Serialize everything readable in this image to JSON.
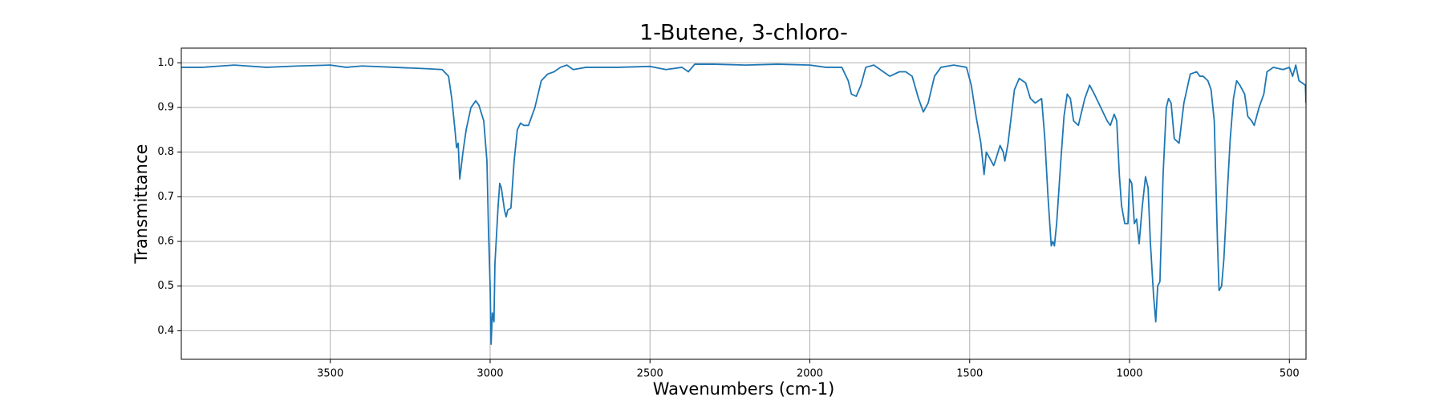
{
  "chart_data": {
    "type": "line",
    "title": "1-Butene, 3-chloro-",
    "xlabel": "Wavenumbers (cm-1)",
    "ylabel": "Transmittance",
    "color": "#1f77b4",
    "grid": true,
    "xlim": [
      3966,
      448
    ],
    "ylim": [
      0.336,
      1.033
    ],
    "xticks": [
      3500,
      3000,
      2500,
      2000,
      1500,
      1000,
      500
    ],
    "yticks": [
      0.4,
      0.5,
      0.6,
      0.7,
      0.8,
      0.9,
      {
        "value": 1,
        "label": "1.0"
      }
    ],
    "x": [
      3966,
      3900,
      3800,
      3700,
      3600,
      3500,
      3450,
      3400,
      3300,
      3200,
      3150,
      3130,
      3120,
      3110,
      3105,
      3100,
      3095,
      3085,
      3075,
      3060,
      3045,
      3035,
      3020,
      3010,
      3005,
      3000,
      2997,
      2993,
      2988,
      2985,
      2975,
      2970,
      2965,
      2955,
      2950,
      2945,
      2935,
      2925,
      2915,
      2905,
      2895,
      2880,
      2860,
      2840,
      2820,
      2800,
      2780,
      2760,
      2740,
      2700,
      2600,
      2500,
      2450,
      2400,
      2380,
      2360,
      2300,
      2200,
      2100,
      2000,
      1950,
      1900,
      1880,
      1870,
      1855,
      1840,
      1825,
      1800,
      1770,
      1750,
      1720,
      1700,
      1680,
      1660,
      1645,
      1630,
      1610,
      1590,
      1550,
      1510,
      1495,
      1480,
      1465,
      1455,
      1448,
      1440,
      1425,
      1420,
      1405,
      1395,
      1390,
      1380,
      1370,
      1360,
      1345,
      1325,
      1310,
      1295,
      1285,
      1275,
      1265,
      1255,
      1245,
      1240,
      1235,
      1228,
      1215,
      1205,
      1195,
      1185,
      1175,
      1160,
      1140,
      1125,
      1110,
      1090,
      1070,
      1060,
      1048,
      1040,
      1032,
      1025,
      1015,
      1005,
      1000,
      993,
      985,
      978,
      970,
      960,
      950,
      942,
      935,
      925,
      918,
      912,
      905,
      895,
      885,
      878,
      870,
      860,
      845,
      830,
      810,
      790,
      780,
      770,
      755,
      745,
      735,
      725,
      720,
      712,
      705,
      695,
      685,
      675,
      665,
      655,
      640,
      630,
      618,
      610,
      595,
      580,
      570,
      550,
      520,
      500,
      490,
      480,
      470,
      460,
      450,
      448
    ],
    "values": [
      0.99,
      0.99,
      0.995,
      0.99,
      0.993,
      0.995,
      0.99,
      0.993,
      0.99,
      0.987,
      0.985,
      0.97,
      0.92,
      0.85,
      0.81,
      0.82,
      0.74,
      0.8,
      0.85,
      0.9,
      0.915,
      0.905,
      0.87,
      0.78,
      0.62,
      0.5,
      0.37,
      0.44,
      0.42,
      0.55,
      0.68,
      0.73,
      0.72,
      0.67,
      0.655,
      0.67,
      0.675,
      0.78,
      0.85,
      0.865,
      0.86,
      0.86,
      0.9,
      0.96,
      0.975,
      0.98,
      0.99,
      0.995,
      0.985,
      0.99,
      0.99,
      0.992,
      0.985,
      0.99,
      0.98,
      0.997,
      0.997,
      0.995,
      0.997,
      0.995,
      0.99,
      0.99,
      0.96,
      0.93,
      0.925,
      0.95,
      0.99,
      0.995,
      0.98,
      0.97,
      0.98,
      0.98,
      0.97,
      0.92,
      0.89,
      0.91,
      0.97,
      0.99,
      0.995,
      0.99,
      0.95,
      0.88,
      0.82,
      0.75,
      0.8,
      0.79,
      0.77,
      0.78,
      0.815,
      0.8,
      0.78,
      0.82,
      0.88,
      0.94,
      0.965,
      0.955,
      0.92,
      0.91,
      0.915,
      0.92,
      0.83,
      0.7,
      0.59,
      0.6,
      0.59,
      0.64,
      0.78,
      0.88,
      0.93,
      0.92,
      0.87,
      0.86,
      0.92,
      0.95,
      0.93,
      0.9,
      0.87,
      0.86,
      0.885,
      0.87,
      0.75,
      0.68,
      0.64,
      0.64,
      0.74,
      0.73,
      0.64,
      0.65,
      0.595,
      0.68,
      0.745,
      0.72,
      0.6,
      0.48,
      0.42,
      0.5,
      0.51,
      0.75,
      0.9,
      0.92,
      0.91,
      0.83,
      0.82,
      0.91,
      0.975,
      0.98,
      0.97,
      0.97,
      0.96,
      0.94,
      0.87,
      0.6,
      0.49,
      0.5,
      0.56,
      0.7,
      0.83,
      0.92,
      0.96,
      0.95,
      0.93,
      0.88,
      0.87,
      0.86,
      0.9,
      0.93,
      0.98,
      0.99,
      0.985,
      0.99,
      0.97,
      0.995,
      0.96,
      0.955,
      0.95,
      0.91
    ]
  }
}
